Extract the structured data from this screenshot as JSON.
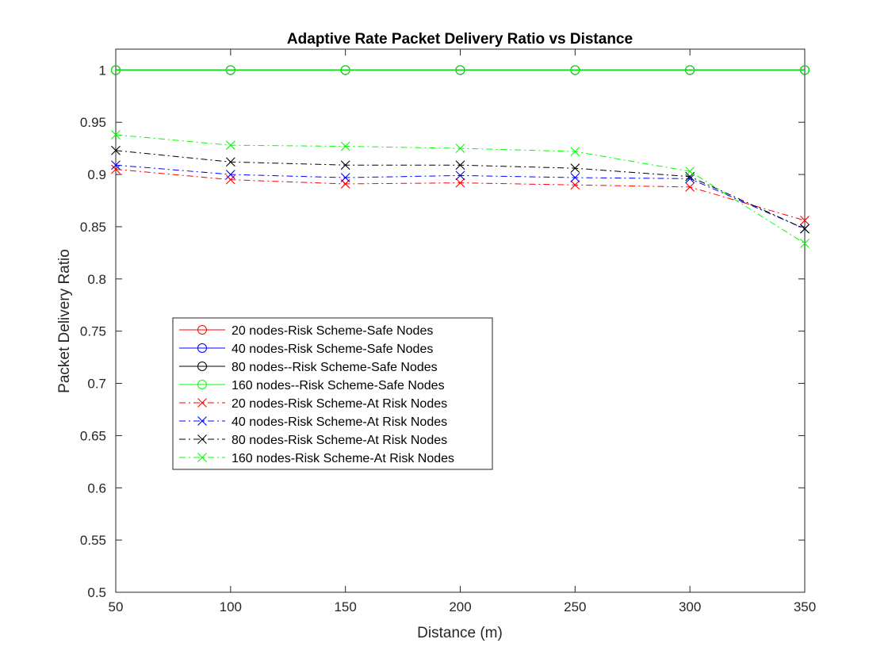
{
  "chart_data": {
    "type": "line",
    "title": "Adaptive Rate Packet Delivery Ratio vs Distance",
    "xlabel": "Distance (m)",
    "ylabel": "Packet Delivery Ratio",
    "x": [
      50,
      100,
      150,
      200,
      250,
      300,
      350
    ],
    "xlim": [
      50,
      350
    ],
    "ylim": [
      0.5,
      1.02
    ],
    "xticks": [
      "50",
      "100",
      "150",
      "200",
      "250",
      "300",
      "350"
    ],
    "yticks": [
      "0.5",
      "0.55",
      "0.6",
      "0.65",
      "0.7",
      "0.75",
      "0.8",
      "0.85",
      "0.9",
      "0.95",
      "1"
    ],
    "grid": false,
    "legend_placement": "left-middle",
    "series": [
      {
        "name": "20 nodes-Risk Scheme-Safe Nodes",
        "color": "#ff0000",
        "marker": "circle",
        "dash": "solid",
        "values": [
          1,
          1,
          1,
          1,
          1,
          1,
          1
        ]
      },
      {
        "name": "40 nodes-Risk Scheme-Safe Nodes",
        "color": "#0000ff",
        "marker": "circle",
        "dash": "solid",
        "values": [
          1,
          1,
          1,
          1,
          1,
          1,
          1
        ]
      },
      {
        "name": "80 nodes--Risk Scheme-Safe Nodes",
        "color": "#000000",
        "marker": "circle",
        "dash": "solid",
        "values": [
          1,
          1,
          1,
          1,
          1,
          1,
          1
        ]
      },
      {
        "name": "160 nodes--Risk Scheme-Safe Nodes",
        "color": "#00ff00",
        "marker": "circle",
        "dash": "solid",
        "values": [
          1,
          1,
          1,
          1,
          1,
          1,
          1
        ]
      },
      {
        "name": "20 nodes-Risk Scheme-At Risk Nodes",
        "color": "#ff0000",
        "marker": "x",
        "dash": "dashdot",
        "values": [
          0.905,
          0.895,
          0.891,
          0.892,
          0.89,
          0.888,
          0.856
        ]
      },
      {
        "name": "40 nodes-Risk Scheme-At Risk Nodes",
        "color": "#0000ff",
        "marker": "x",
        "dash": "dashdot",
        "values": [
          0.909,
          0.9,
          0.897,
          0.899,
          0.897,
          0.896,
          0.848
        ]
      },
      {
        "name": "80 nodes-Risk Scheme-At Risk Nodes",
        "color": "#000000",
        "marker": "x",
        "dash": "dashdot",
        "values": [
          0.923,
          0.912,
          0.909,
          0.909,
          0.906,
          0.898,
          0.848
        ]
      },
      {
        "name": "160 nodes-Risk Scheme-At Risk Nodes",
        "color": "#00ff00",
        "marker": "x",
        "dash": "dashdot",
        "values": [
          0.938,
          0.928,
          0.927,
          0.925,
          0.922,
          0.903,
          0.834
        ]
      }
    ]
  }
}
